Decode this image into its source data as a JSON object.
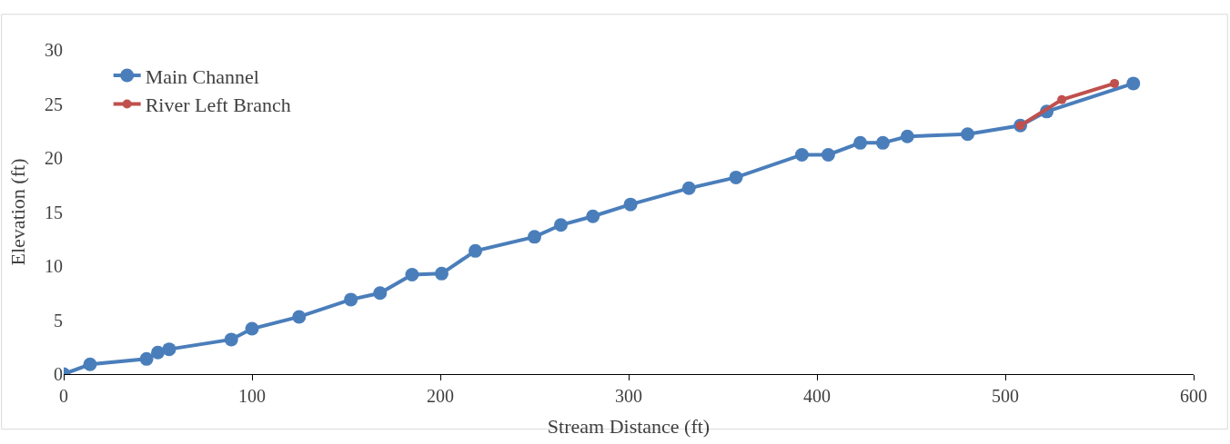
{
  "chart_data": {
    "type": "line",
    "xlabel": "Stream Distance (ft)",
    "ylabel": "Elevation (ft)",
    "xlim": [
      0,
      600
    ],
    "xticks": [
      0,
      100,
      200,
      300,
      400,
      500,
      600
    ],
    "ylim": [
      0,
      30
    ],
    "yticks": [
      0,
      5,
      10,
      15,
      20,
      25,
      30
    ],
    "grid": false,
    "legend": "top left",
    "marker": "circle",
    "line_style": "solid",
    "series": [
      {
        "name": "Main Channel",
        "color": "#4a7ebb",
        "x": [
          0,
          14,
          44,
          50,
          56,
          89,
          100,
          125,
          152.5,
          168,
          185,
          200.7,
          218.6,
          250,
          264,
          281,
          301,
          332,
          357,
          392,
          406,
          423,
          435,
          448,
          480,
          508,
          522,
          568
        ],
        "values": [
          0,
          0.9,
          1.4,
          2.0,
          2.3,
          3.2,
          4.2,
          5.3,
          6.9,
          7.5,
          9.2,
          9.3,
          11.4,
          12.7,
          13.8,
          14.6,
          15.7,
          17.2,
          18.2,
          20.3,
          20.3,
          21.4,
          21.4,
          22.0,
          22.2,
          23.0,
          24.3,
          26.9
        ]
      },
      {
        "name": "River Left Branch",
        "color": "#c0504d",
        "x": [
          508,
          530,
          558
        ],
        "values": [
          23.0,
          25.4,
          26.9
        ]
      }
    ]
  }
}
